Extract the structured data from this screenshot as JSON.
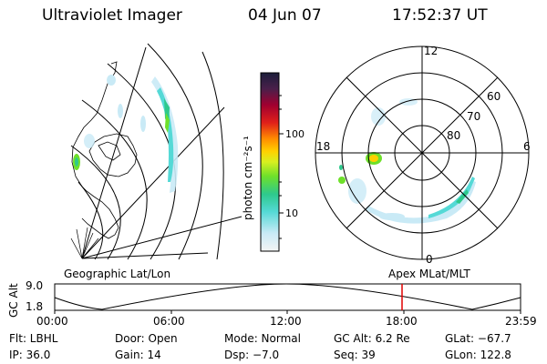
{
  "header": {
    "instrument": "Ultraviolet Imager",
    "date": "04 Jun 07",
    "time": "17:52:37 UT"
  },
  "colorbar": {
    "unit_label": "photon cm⁻²s⁻¹",
    "ticks": [
      "100",
      "10"
    ],
    "scale": "log"
  },
  "left_panel": {
    "caption": "Geographic Lat/Lon"
  },
  "right_panel": {
    "caption": "Apex MLat/MLT",
    "mlt_labels": [
      "12",
      "18",
      "6",
      "0"
    ],
    "lat_labels": [
      "60",
      "70",
      "80"
    ]
  },
  "altitude_plot": {
    "ylabel": "GC Alt",
    "y_ticks": [
      "9.0",
      "1.8"
    ],
    "x_ticks": [
      "00:00",
      "06:00",
      "12:00",
      "18:00",
      "23:59"
    ],
    "current_time_marker": "17:52",
    "marker_color": "#e00000"
  },
  "status": {
    "filter": "Flt: LBHL",
    "door": "Door: Open",
    "mode": "Mode: Normal",
    "gc_alt": "GC Alt: 6.2 Re",
    "glat": "GLat: −67.7",
    "ip": "IP: 36.0",
    "gain": "Gain: 14",
    "dsp": "Dsp:  −7.0",
    "seq": "Seq: 39",
    "glon": "GLon: 122.8"
  }
}
